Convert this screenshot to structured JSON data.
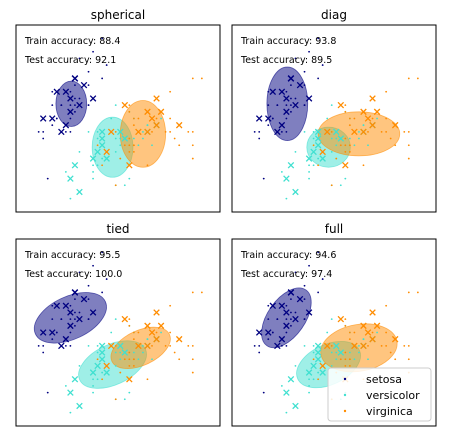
{
  "chart_data": [
    {
      "type": "scatter",
      "title": "spherical",
      "train_accuracy": "Train accuracy: 88.4",
      "test_accuracy": "Test accuracy: 92.1",
      "ellipses": [
        {
          "class": "setosa",
          "cx": 5.02,
          "cy": 3.42,
          "rx": 0.34,
          "ry": 0.34,
          "angle": 0
        },
        {
          "class": "versicolor",
          "cx": 5.93,
          "cy": 2.77,
          "rx": 0.45,
          "ry": 0.45,
          "angle": 0
        },
        {
          "class": "virginica",
          "cx": 6.6,
          "cy": 2.97,
          "rx": 0.5,
          "ry": 0.5,
          "angle": 0
        }
      ]
    },
    {
      "type": "scatter",
      "title": "diag",
      "train_accuracy": "Train accuracy: 93.8",
      "test_accuracy": "Test accuracy: 89.5",
      "ellipses": [
        {
          "class": "setosa",
          "cx": 5.02,
          "cy": 3.42,
          "rx": 0.45,
          "ry": 0.55,
          "angle": 0
        },
        {
          "class": "versicolor",
          "cx": 5.93,
          "cy": 2.77,
          "rx": 0.48,
          "ry": 0.3,
          "angle": 0
        },
        {
          "class": "virginica",
          "cx": 6.6,
          "cy": 2.97,
          "rx": 0.9,
          "ry": 0.33,
          "angle": 0
        }
      ]
    },
    {
      "type": "scatter",
      "title": "tied",
      "train_accuracy": "Train accuracy: 95.5",
      "test_accuracy": "Test accuracy: 100.0",
      "ellipses": [
        {
          "class": "setosa",
          "cx": 5.0,
          "cy": 3.42,
          "rx": 0.85,
          "ry": 0.32,
          "angle": 25
        },
        {
          "class": "versicolor",
          "cx": 5.93,
          "cy": 2.72,
          "rx": 0.8,
          "ry": 0.3,
          "angle": 25
        },
        {
          "class": "virginica",
          "cx": 6.55,
          "cy": 2.97,
          "rx": 0.7,
          "ry": 0.26,
          "angle": 25
        }
      ]
    },
    {
      "type": "scatter",
      "title": "full",
      "train_accuracy": "Train accuracy: 94.6",
      "test_accuracy": "Test accuracy: 97.4",
      "ellipses": [
        {
          "class": "setosa",
          "cx": 5.0,
          "cy": 3.42,
          "rx": 0.75,
          "ry": 0.28,
          "angle": 55
        },
        {
          "class": "versicolor",
          "cx": 5.93,
          "cy": 2.72,
          "rx": 0.75,
          "ry": 0.3,
          "angle": 25
        },
        {
          "class": "virginica",
          "cx": 6.6,
          "cy": 2.97,
          "rx": 0.85,
          "ry": 0.35,
          "angle": 10
        }
      ],
      "legend": {
        "position": "lower-right",
        "entries": [
          "setosa",
          "versicolor",
          "virginica"
        ]
      }
    }
  ],
  "shared_axes": {
    "xlim": [
      3.8,
      8.3
    ],
    "ylim": [
      1.8,
      4.6
    ],
    "ticks_visible": false,
    "grid": false
  },
  "class_colors": {
    "setosa": "#000080",
    "versicolor": "#40e0d0",
    "virginica": "#ff8c00"
  },
  "train_points": {
    "setosa": [
      [
        5.1,
        3.5
      ],
      [
        4.9,
        3.0
      ],
      [
        4.7,
        3.2
      ],
      [
        4.6,
        3.1
      ],
      [
        5.0,
        3.6
      ],
      [
        5.4,
        3.9
      ],
      [
        4.6,
        3.4
      ],
      [
        5.0,
        3.4
      ],
      [
        4.4,
        2.9
      ],
      [
        4.9,
        3.1
      ],
      [
        5.4,
        3.7
      ],
      [
        4.8,
        3.4
      ],
      [
        4.8,
        3.0
      ],
      [
        4.3,
        3.0
      ],
      [
        5.8,
        4.0
      ],
      [
        5.7,
        4.4
      ],
      [
        5.1,
        3.8
      ],
      [
        5.7,
        3.8
      ],
      [
        5.1,
        3.7
      ],
      [
        5.4,
        3.4
      ],
      [
        4.6,
        3.6
      ],
      [
        5.1,
        3.3
      ],
      [
        4.8,
        3.4
      ],
      [
        5.0,
        3.0
      ],
      [
        5.2,
        3.5
      ],
      [
        4.7,
        3.2
      ],
      [
        5.4,
        3.4
      ],
      [
        5.2,
        4.1
      ],
      [
        5.5,
        4.2
      ],
      [
        5.0,
        3.2
      ],
      [
        5.5,
        3.5
      ],
      [
        4.4,
        3.0
      ],
      [
        5.1,
        3.4
      ],
      [
        4.5,
        2.3
      ],
      [
        5.0,
        3.5
      ],
      [
        4.8,
        3.0
      ],
      [
        5.3,
        3.7
      ]
    ],
    "versicolor": [
      [
        7.0,
        3.2
      ],
      [
        6.4,
        3.2
      ],
      [
        6.9,
        3.1
      ],
      [
        5.5,
        2.3
      ],
      [
        6.5,
        2.8
      ],
      [
        5.7,
        2.8
      ],
      [
        6.3,
        3.3
      ],
      [
        4.9,
        2.4
      ],
      [
        6.6,
        2.9
      ],
      [
        5.2,
        2.7
      ],
      [
        5.0,
        2.0
      ],
      [
        5.9,
        3.0
      ],
      [
        6.0,
        2.2
      ],
      [
        6.1,
        2.9
      ],
      [
        5.6,
        2.9
      ],
      [
        6.7,
        3.1
      ],
      [
        5.8,
        2.7
      ],
      [
        6.2,
        2.2
      ],
      [
        5.6,
        2.5
      ],
      [
        5.9,
        3.2
      ],
      [
        6.1,
        2.8
      ],
      [
        6.3,
        2.5
      ],
      [
        6.4,
        2.9
      ],
      [
        6.6,
        3.0
      ],
      [
        6.8,
        2.8
      ],
      [
        6.0,
        2.9
      ],
      [
        5.7,
        2.6
      ],
      [
        5.5,
        2.4
      ],
      [
        5.8,
        2.7
      ],
      [
        6.0,
        2.7
      ],
      [
        5.4,
        3.0
      ],
      [
        6.0,
        3.4
      ],
      [
        6.7,
        3.1
      ],
      [
        6.3,
        2.3
      ],
      [
        5.6,
        3.0
      ],
      [
        5.5,
        2.5
      ],
      [
        6.1,
        3.0
      ]
    ],
    "virginica": [
      [
        6.3,
        3.3
      ],
      [
        5.8,
        2.7
      ],
      [
        7.1,
        3.0
      ],
      [
        6.3,
        2.9
      ],
      [
        6.5,
        3.0
      ],
      [
        7.6,
        3.0
      ],
      [
        7.3,
        2.9
      ],
      [
        6.7,
        2.5
      ],
      [
        7.2,
        3.6
      ],
      [
        6.5,
        3.2
      ],
      [
        6.4,
        2.7
      ],
      [
        6.8,
        3.0
      ],
      [
        5.7,
        2.5
      ],
      [
        6.4,
        3.2
      ],
      [
        6.5,
        3.0
      ],
      [
        7.7,
        3.8
      ],
      [
        7.7,
        2.6
      ],
      [
        6.0,
        2.2
      ],
      [
        6.9,
        3.2
      ],
      [
        5.6,
        2.8
      ],
      [
        7.7,
        2.8
      ],
      [
        6.3,
        2.7
      ],
      [
        6.7,
        3.3
      ],
      [
        7.2,
        3.2
      ],
      [
        6.2,
        2.8
      ],
      [
        6.1,
        3.0
      ],
      [
        6.4,
        2.8
      ],
      [
        7.2,
        3.0
      ],
      [
        7.4,
        2.8
      ],
      [
        7.9,
        3.8
      ],
      [
        6.4,
        2.8
      ],
      [
        6.3,
        2.8
      ],
      [
        6.1,
        2.6
      ],
      [
        7.7,
        3.0
      ],
      [
        6.3,
        3.4
      ],
      [
        6.4,
        3.1
      ],
      [
        6.0,
        3.0
      ]
    ]
  },
  "test_points": {
    "setosa": [
      [
        4.4,
        3.2
      ],
      [
        5.0,
        3.5
      ],
      [
        5.1,
        3.8
      ],
      [
        4.8,
        3.0
      ],
      [
        5.1,
        3.8
      ],
      [
        4.6,
        3.2
      ],
      [
        5.3,
        3.7
      ],
      [
        5.0,
        3.3
      ],
      [
        5.2,
        3.4
      ],
      [
        4.9,
        3.6
      ],
      [
        5.5,
        3.5
      ],
      [
        4.7,
        3.6
      ],
      [
        4.9,
        3.1
      ]
    ],
    "versicolor": [
      [
        5.5,
        2.6
      ],
      [
        6.1,
        3.0
      ],
      [
        5.8,
        2.6
      ],
      [
        5.0,
        2.3
      ],
      [
        5.6,
        2.7
      ],
      [
        5.7,
        3.0
      ],
      [
        5.7,
        2.9
      ],
      [
        6.2,
        2.9
      ],
      [
        5.1,
        2.5
      ],
      [
        5.7,
        2.8
      ],
      [
        5.2,
        2.1
      ],
      [
        6.7,
        3.0
      ],
      [
        6.9,
        3.1
      ]
    ],
    "virginica": [
      [
        6.9,
        3.1
      ],
      [
        5.8,
        2.7
      ],
      [
        6.8,
        3.2
      ],
      [
        6.7,
        3.3
      ],
      [
        6.7,
        3.0
      ],
      [
        6.3,
        2.5
      ],
      [
        6.5,
        3.0
      ],
      [
        6.2,
        3.4
      ],
      [
        7.4,
        3.1
      ],
      [
        6.9,
        3.5
      ],
      [
        5.9,
        3.0
      ],
      [
        7.0,
        3.3
      ]
    ]
  }
}
